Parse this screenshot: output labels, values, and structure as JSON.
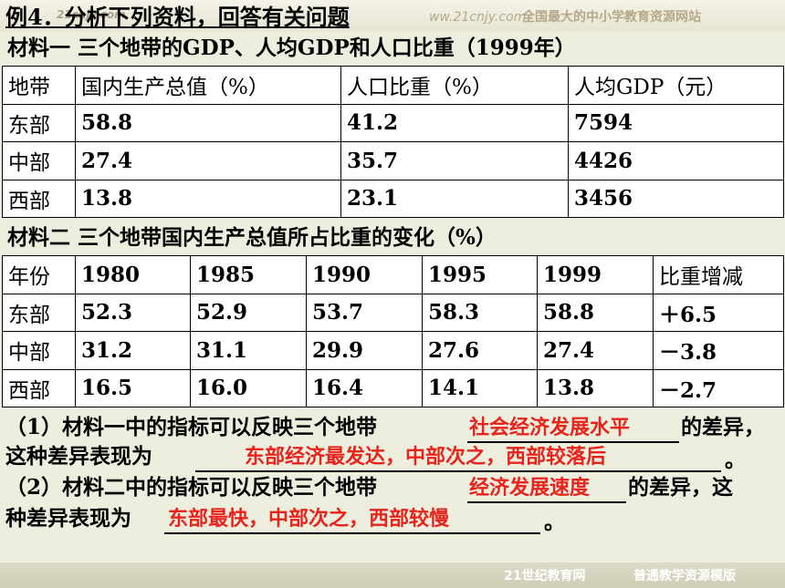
{
  "header": {
    "title": "例4．分析下列资料，回答有关问题",
    "watermark": "21cnjy.com",
    "site_url": "ww.21cnjy.com）",
    "site_slogan": "全国最大的中小学教育资源网站"
  },
  "material1": {
    "title": "材料一  三个地带的GDP、人均GDP和人口比重（1999年）",
    "headers": [
      "地带",
      "国内生产总值（%）",
      "人口比重（%）",
      "人均GDP（元）"
    ],
    "rows": [
      [
        "东部",
        "58.8",
        "41.2",
        "7594"
      ],
      [
        "中部",
        "27.4",
        "35.7",
        "4426"
      ],
      [
        "西部",
        "13.8",
        "23.1",
        "3456"
      ]
    ]
  },
  "material2": {
    "title": "材料二  三个地带国内生产总值所占比重的变化（%）",
    "headers": [
      "年份",
      "1980",
      "1985",
      "1990",
      "1995",
      "1999",
      "比重增减"
    ],
    "rows": [
      [
        "东部",
        "52.3",
        "52.9",
        "53.7",
        "58.3",
        "58.8",
        "＋6.5"
      ],
      [
        "中部",
        "31.2",
        "31.1",
        "29.9",
        "27.6",
        "27.4",
        "－3.8"
      ],
      [
        "西部",
        "16.5",
        "16.0",
        "16.4",
        "14.1",
        "13.8",
        "－2.7"
      ]
    ]
  },
  "questions": {
    "q1_a": "（1）材料一中的指标可以反映三个地带",
    "q1_ans1": "社会经济发展水平",
    "q1_b": "的差异，",
    "q1_c": "这种差异表现为",
    "q1_ans2": "东部经济最发达，中部次之，西部较落后",
    "q1_end": "。",
    "q2_a": "（2）材料二中的指标可以反映三个地带",
    "q2_ans1": "经济发展速度",
    "q2_b": "的差异，这",
    "q2_c": "种差异表现为",
    "q2_ans2": "东部最快，中部次之，西部较慢",
    "q2_end": "。"
  },
  "footer": {
    "left": "21世纪教育网",
    "right": "普通教学资源模版"
  }
}
